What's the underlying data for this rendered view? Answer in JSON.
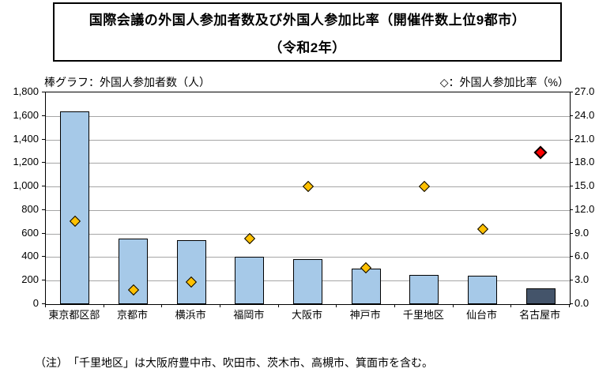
{
  "title": {
    "line1": "国際会議の外国人参加者数及び外国人参加比率（開催件数上位9都市）",
    "line2": "（令和2年）"
  },
  "axis_headers": {
    "left": "棒グラフ：外国人参加者数（人）",
    "right": "◇：外国人参加比率（%）"
  },
  "note": "（注）　「千里地区」は大阪府豊中市、吹田市、茨木市、高槻市、箕面市を含む。",
  "chart_data": {
    "type": "combo (bar + scatter diamonds)",
    "categories": [
      "東京都区部",
      "京都市",
      "横浜市",
      "福岡市",
      "大阪市",
      "神戸市",
      "千里地区",
      "仙台市",
      "名古屋市"
    ],
    "series": [
      {
        "name": "外国人参加者数（人）",
        "type": "bar",
        "axis": "left",
        "values": [
          1640,
          555,
          545,
          400,
          380,
          305,
          250,
          240,
          135
        ],
        "point_colors": [
          "#A6C9E8",
          "#A6C9E8",
          "#A6C9E8",
          "#A6C9E8",
          "#A6C9E8",
          "#A6C9E8",
          "#A6C9E8",
          "#A6C9E8",
          "#44546A"
        ]
      },
      {
        "name": "外国人参加比率（%）",
        "type": "scatter",
        "marker": "diamond",
        "axis": "right",
        "values": [
          10.6,
          1.8,
          2.8,
          8.4,
          15.0,
          4.6,
          15.0,
          9.6,
          19.3
        ],
        "point_colors": [
          "#FFC000",
          "#FFC000",
          "#FFC000",
          "#FFC000",
          "#FFC000",
          "#FFC000",
          "#FFC000",
          "#FFC000",
          "#FF0000"
        ]
      }
    ],
    "left_axis": {
      "min": 0,
      "max": 1800,
      "step": 200,
      "tick_labels": [
        "0",
        "200",
        "400",
        "600",
        "800",
        "1,000",
        "1,200",
        "1,400",
        "1,600",
        "1,800"
      ]
    },
    "right_axis": {
      "min": 0,
      "max": 27,
      "step": 3,
      "tick_labels": [
        "0.0",
        "3.0",
        "6.0",
        "9.0",
        "12.0",
        "15.0",
        "18.0",
        "21.0",
        "24.0",
        "27.0"
      ]
    },
    "grid": true,
    "gridline_color": "#A6A6A6",
    "axis_color": "#000000",
    "marker_border_color": "#000000",
    "bar_border_color": "#000000"
  }
}
